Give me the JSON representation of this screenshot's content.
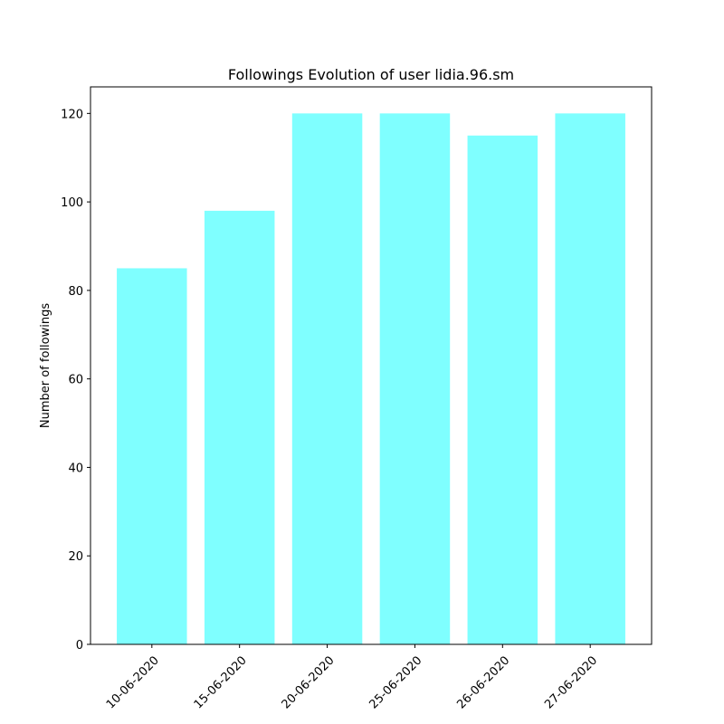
{
  "chart_data": {
    "type": "bar",
    "title": "Followings Evolution of user lidia.96.sm",
    "xlabel": "",
    "ylabel": "Number of followings",
    "categories": [
      "10-06-2020",
      "15-06-2020",
      "20-06-2020",
      "25-06-2020",
      "26-06-2020",
      "27-06-2020"
    ],
    "values": [
      85,
      98,
      120,
      120,
      115,
      120
    ],
    "ylim": [
      0,
      126
    ],
    "yticks": [
      0,
      20,
      40,
      60,
      80,
      100,
      120
    ],
    "bar_color": "#7fffff",
    "grid": false,
    "xtick_rotation": 45
  }
}
